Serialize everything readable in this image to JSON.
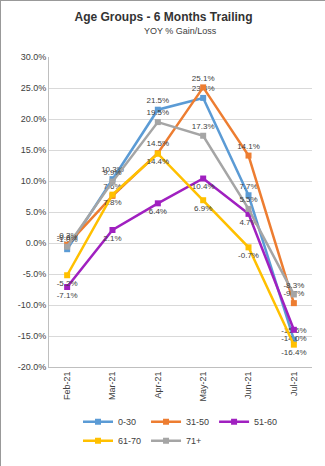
{
  "chart_data": {
    "type": "line",
    "title": "Age Groups - 6 Months Trailing",
    "subtitle": "YOY % Gain/Loss",
    "categories": [
      "Feb-21",
      "Mar-21",
      "Apr-21",
      "May-21",
      "Jun-21",
      "Jul-21"
    ],
    "series": [
      {
        "name": "0-30",
        "color": "#5B9BD5",
        "values": [
          -1.0,
          10.3,
          21.5,
          23.4,
          7.7,
          -15.6
        ],
        "value_labels": [
          "-1.0%",
          "10.3%",
          "21.5%",
          "23.4%",
          "7.7%",
          "-15.6%"
        ]
      },
      {
        "name": "31-50",
        "color": "#ED7D31",
        "values": [
          -0.3,
          7.6,
          14.5,
          25.1,
          14.1,
          -9.7
        ],
        "value_labels": [
          "-0.3%",
          "7.6%",
          "14.5%",
          "25.1%",
          "14.1%",
          "-9.7%"
        ]
      },
      {
        "name": "51-60",
        "color": "#A020C0",
        "values": [
          -7.1,
          2.1,
          6.4,
          10.4,
          4.7,
          -14.0
        ],
        "value_labels": [
          "-7.1%",
          "2.1%",
          "6.4%",
          "10.4%",
          "4.7%",
          "-14.0%"
        ]
      },
      {
        "name": "61-70",
        "color": "#FFC000",
        "values": [
          -5.2,
          7.8,
          14.4,
          6.9,
          -0.7,
          -16.4
        ],
        "value_labels": [
          "-5.2%",
          "7.8%",
          "14.4%",
          "6.9%",
          "-0.7%",
          "-16.4%"
        ]
      },
      {
        "name": "71+",
        "color": "#A5A5A5",
        "values": [
          -0.6,
          9.9,
          19.5,
          17.3,
          5.5,
          -8.3
        ],
        "value_labels": [
          "-0.6%",
          "9.9%",
          "19.5%",
          "17.3%",
          "5.5%",
          "-8.3%"
        ]
      }
    ],
    "ylim": [
      -20,
      30
    ],
    "yticks": [
      {
        "value": -20,
        "label": "-20.0%"
      },
      {
        "value": -15,
        "label": "-15.0%"
      },
      {
        "value": -10,
        "label": "-10.0%"
      },
      {
        "value": -5,
        "label": "-5.0%"
      },
      {
        "value": 0,
        "label": "0.0%"
      },
      {
        "value": 5,
        "label": "5.0%"
      },
      {
        "value": 10,
        "label": "10.0%"
      },
      {
        "value": 15,
        "label": "15.0%"
      },
      {
        "value": 20,
        "label": "20.0%"
      },
      {
        "value": 25,
        "label": "25.0%"
      },
      {
        "value": 30,
        "label": "30.0%"
      }
    ],
    "grid": true,
    "legend": "bottom",
    "data_labels": true,
    "marker": "square"
  }
}
